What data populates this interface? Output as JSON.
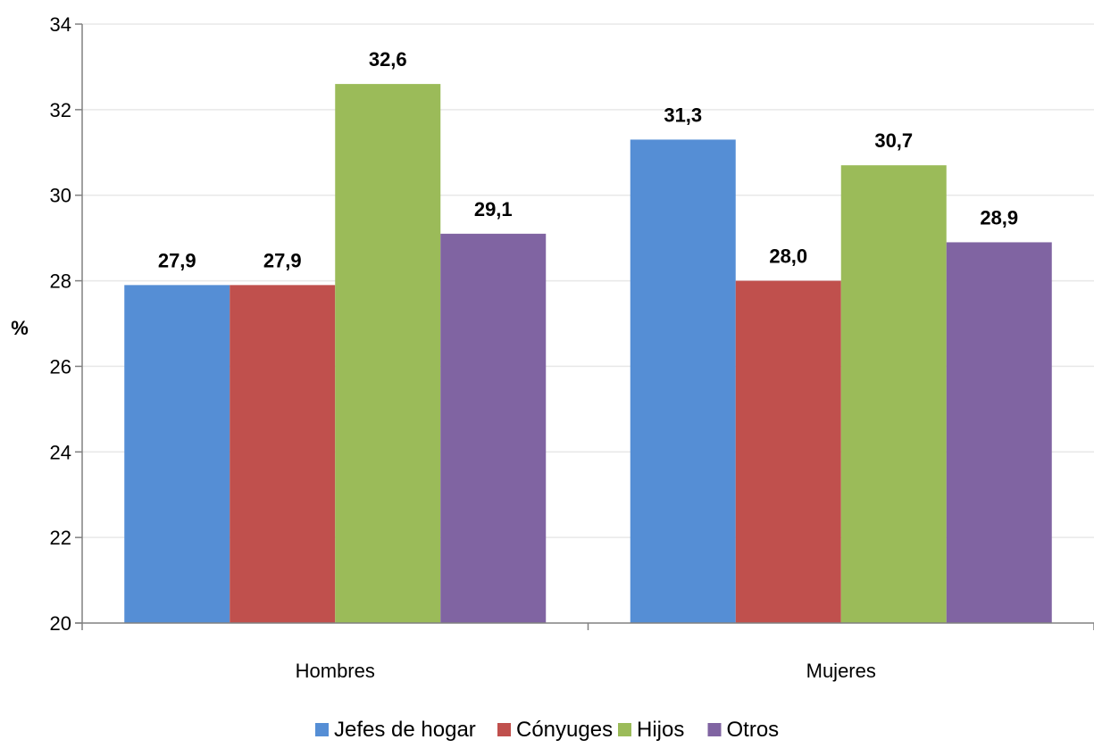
{
  "chart_data": {
    "type": "bar",
    "title": "",
    "xlabel": "",
    "ylabel": "%",
    "ylim": [
      20,
      34
    ],
    "yticks": [
      20,
      22,
      24,
      26,
      28,
      30,
      32,
      34
    ],
    "grid": true,
    "legend_position": "bottom",
    "categories": [
      "Hombres",
      "Mujeres"
    ],
    "series": [
      {
        "name": "Jefes de hogar",
        "color": "#558ED5",
        "values": [
          27.9,
          31.3
        ],
        "labels": [
          "27,9",
          "31,3"
        ]
      },
      {
        "name": "Cónyuges",
        "color": "#C0504D",
        "values": [
          27.9,
          28.0
        ],
        "labels": [
          "27,9",
          "28,0"
        ]
      },
      {
        "name": "Hijos",
        "color": "#9BBB59",
        "values": [
          32.6,
          30.7
        ],
        "labels": [
          "32,6",
          "30,7"
        ]
      },
      {
        "name": "Otros",
        "color": "#8064A2",
        "values": [
          29.1,
          28.9
        ],
        "labels": [
          "29,1",
          "28,9"
        ]
      }
    ]
  }
}
